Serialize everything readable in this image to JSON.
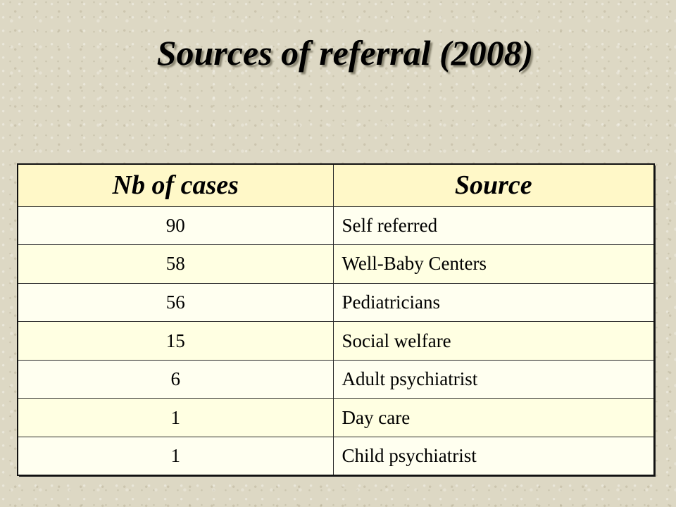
{
  "slide": {
    "title": "Sources of referral (2008)"
  },
  "table": {
    "headers": [
      "Nb of cases",
      "Source"
    ],
    "rows": [
      {
        "cases": "90",
        "source": "Self referred"
      },
      {
        "cases": "58",
        "source": "Well-Baby Centers"
      },
      {
        "cases": "56",
        "source": "Pediatricians"
      },
      {
        "cases": "15",
        "source": "Social welfare"
      },
      {
        "cases": "6",
        "source": "Adult psychiatrist"
      },
      {
        "cases": "1",
        "source": "Day care"
      },
      {
        "cases": "1",
        "source": "Child psychiatrist"
      }
    ]
  }
}
